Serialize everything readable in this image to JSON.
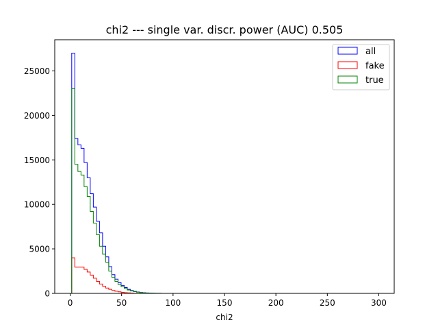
{
  "chart_data": {
    "type": "step-histogram",
    "title": "chi2 --- single var. discr. power (AUC) 0.505",
    "xlabel": "chi2",
    "ylabel": "",
    "xlim": [
      -15,
      315
    ],
    "ylim": [
      0,
      28500
    ],
    "xticks": [
      0,
      50,
      100,
      150,
      200,
      250,
      300
    ],
    "yticks": [
      0,
      5000,
      10000,
      15000,
      20000,
      25000
    ],
    "grid": false,
    "legend_position": "top-right",
    "bin_edges": [
      1.5,
      4.5,
      7.5,
      10.5,
      13.5,
      16.5,
      19.5,
      22.5,
      25.5,
      28.5,
      31.5,
      34.5,
      37.5,
      40.5,
      43.5,
      46.5,
      49.5,
      52.5,
      55.5,
      58.5,
      61.5,
      64.5,
      67.5,
      70.5,
      73.5,
      76.5,
      79.5,
      82.5,
      85.5,
      88.5,
      91.5,
      300
    ],
    "series": [
      {
        "name": "all",
        "color": "#0000ff",
        "values": [
          27000,
          17400,
          16700,
          16300,
          14700,
          13000,
          11200,
          9700,
          8100,
          6800,
          5300,
          4100,
          3000,
          2100,
          1600,
          1200,
          900,
          650,
          450,
          320,
          220,
          150,
          100,
          70,
          45,
          30,
          20,
          12,
          8,
          5,
          0
        ]
      },
      {
        "name": "fake",
        "color": "#ff0000",
        "values": [
          4000,
          2950,
          2950,
          2950,
          2700,
          2400,
          2050,
          1700,
          1350,
          1050,
          800,
          600,
          450,
          330,
          240,
          170,
          120,
          80,
          55,
          35,
          20,
          12,
          8,
          5,
          3,
          2,
          1,
          0,
          0,
          0,
          0
        ]
      },
      {
        "name": "true",
        "color": "#008000",
        "values": [
          23000,
          14500,
          13700,
          13300,
          12000,
          10900,
          9200,
          7900,
          6600,
          5300,
          4400,
          3500,
          2500,
          1800,
          1350,
          1000,
          750,
          550,
          380,
          270,
          190,
          130,
          90,
          60,
          40,
          25,
          15,
          10,
          6,
          3,
          0
        ]
      }
    ]
  }
}
